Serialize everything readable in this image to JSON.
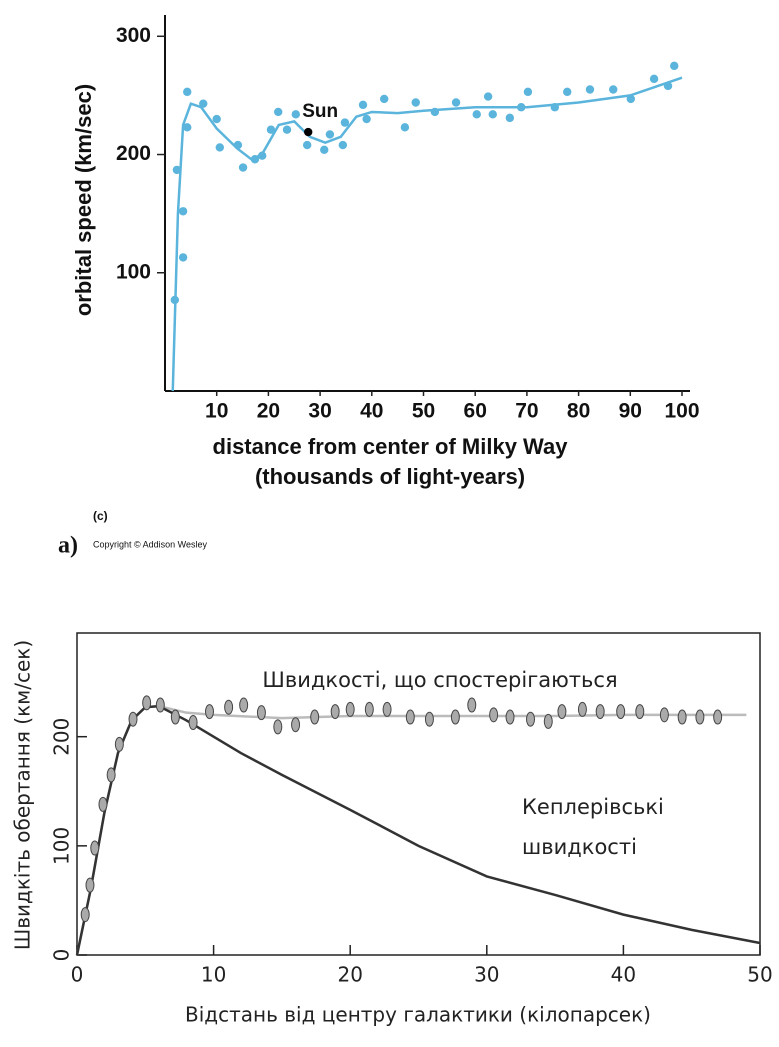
{
  "chart_data": [
    {
      "type": "scatter",
      "ylabel": "orbital speed (km/sec)",
      "xlabel": [
        "distance from center of Milky Way",
        "(thousands of light-years)"
      ],
      "annotations": [
        "(c)",
        "Copyright © Addison Wesley",
        "a)"
      ],
      "xlim": [
        0,
        100
      ],
      "ylim": [
        0,
        318
      ],
      "xticks": [
        10,
        20,
        30,
        40,
        50,
        60,
        70,
        80,
        90,
        100
      ],
      "yticks": [
        100,
        200,
        300
      ],
      "series": [
        {
          "style": "points",
          "marker": "dot",
          "color": "#5ab4dc",
          "x": [
            1.9,
            2.3,
            3.5,
            3.5,
            4.3,
            4.3,
            7.4,
            10,
            10.6,
            14.1,
            15.1,
            17.4,
            18.8,
            20.5,
            21.9,
            23.6,
            25.3,
            27.5,
            30.8,
            31.9,
            34.4,
            34.8,
            38.3,
            39,
            42.4,
            46.4,
            48.5,
            52.2,
            56.3,
            60.3,
            62.5,
            63.4,
            66.7,
            68.9,
            70.2,
            75.4,
            77.8,
            82.2,
            86.7,
            90.1,
            94.6,
            97.3,
            98.5
          ],
          "values": [
            77,
            187,
            152,
            113,
            223,
            253,
            243,
            230,
            206,
            208,
            189,
            196,
            199,
            221,
            236,
            221,
            234,
            208,
            204,
            217,
            208,
            227,
            242,
            230,
            247,
            223,
            244,
            236,
            244,
            234,
            249,
            234,
            231,
            240,
            253,
            240,
            253,
            255,
            255,
            247,
            264,
            258,
            275
          ]
        },
        {
          "style": "line",
          "color": "#5ab4dc",
          "x": [
            1.5,
            2.5,
            3.5,
            5,
            7,
            10,
            14,
            17,
            19,
            22,
            25,
            28,
            31,
            34,
            37,
            40,
            45,
            50,
            60,
            70,
            80,
            90,
            100
          ],
          "values": [
            0,
            150,
            225,
            243,
            240,
            222,
            205,
            195,
            202,
            225,
            228,
            215,
            210,
            215,
            232,
            236,
            235,
            237,
            240,
            240,
            244,
            250,
            265
          ]
        },
        {
          "style": "points",
          "marker": "dot",
          "color": "#000000",
          "name": "Sun",
          "x": [
            27.7
          ],
          "values": [
            219
          ]
        }
      ]
    },
    {
      "type": "scatter",
      "ylabel": "Швидкіть обертання (км/сек)",
      "xlabel": "Відстань від центру галактики (кілопарсек)",
      "annotations": [
        "Швидкості, що спостерігаються",
        "Кеплерівські",
        "швидкості"
      ],
      "xlim": [
        0,
        50
      ],
      "ylim": [
        0,
        295
      ],
      "xticks": [
        0,
        10,
        20,
        30,
        40,
        50
      ],
      "yticks": [
        0,
        100,
        200
      ],
      "series": [
        {
          "style": "line",
          "color": "#bbbbbb",
          "x": [
            0,
            1,
            2,
            3,
            4,
            5,
            6,
            8,
            10,
            15,
            20,
            25,
            30,
            35,
            40,
            45,
            49
          ],
          "values": [
            0,
            60,
            130,
            185,
            215,
            227,
            228,
            222,
            220,
            217,
            219,
            219,
            219,
            219,
            220,
            220,
            220
          ]
        },
        {
          "style": "line",
          "color": "#333333",
          "x": [
            0,
            1,
            2,
            3,
            4,
            5,
            6,
            8,
            10,
            12,
            15,
            20,
            25,
            30,
            35,
            40,
            45,
            50
          ],
          "values": [
            0,
            60,
            130,
            185,
            215,
            227,
            228,
            215,
            200,
            185,
            165,
            133,
            100,
            72,
            55,
            37,
            23,
            11
          ]
        },
        {
          "style": "points",
          "marker": "ellipse",
          "color": "#aaaaaa",
          "x": [
            0.6,
            0.95,
            1.3,
            1.9,
            2.5,
            3.1,
            4.1,
            5.1,
            6.1,
            7.2,
            8.5,
            9.7,
            11.1,
            12.2,
            13.5,
            14.7,
            16,
            17.4,
            18.9,
            20,
            21.4,
            22.7,
            24.4,
            25.8,
            27.7,
            28.9,
            30.5,
            31.7,
            33.2,
            34.5,
            35.5,
            37,
            38.3,
            39.8,
            41.2,
            43,
            44.3,
            45.6,
            46.9
          ],
          "values": [
            37,
            64,
            98,
            138,
            165,
            193,
            216,
            231,
            229,
            218,
            213,
            223,
            227,
            229,
            222,
            209,
            211,
            218,
            223,
            225,
            225,
            225,
            218,
            216,
            218,
            229,
            220,
            218,
            216,
            214,
            223,
            225,
            223,
            223,
            223,
            220,
            218,
            218,
            218
          ]
        }
      ]
    }
  ]
}
